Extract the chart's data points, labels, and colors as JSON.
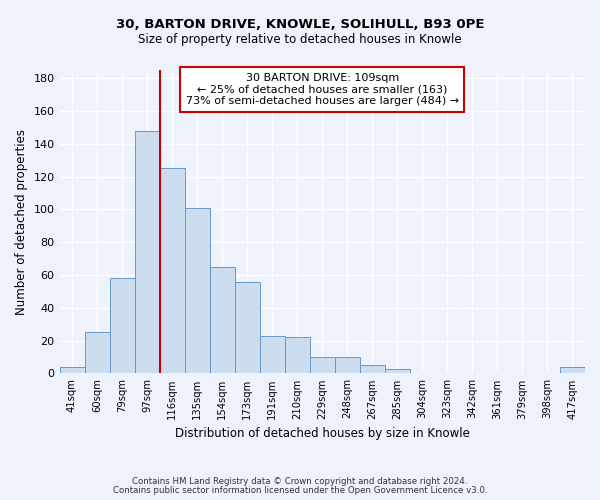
{
  "title": "30, BARTON DRIVE, KNOWLE, SOLIHULL, B93 0PE",
  "subtitle": "Size of property relative to detached houses in Knowle",
  "xlabel": "Distribution of detached houses by size in Knowle",
  "ylabel": "Number of detached properties",
  "bar_labels": [
    "41sqm",
    "60sqm",
    "79sqm",
    "97sqm",
    "116sqm",
    "135sqm",
    "154sqm",
    "173sqm",
    "191sqm",
    "210sqm",
    "229sqm",
    "248sqm",
    "267sqm",
    "285sqm",
    "304sqm",
    "323sqm",
    "342sqm",
    "361sqm",
    "379sqm",
    "398sqm",
    "417sqm"
  ],
  "bar_values": [
    4,
    25,
    58,
    148,
    125,
    101,
    65,
    56,
    23,
    22,
    10,
    10,
    5,
    3,
    0,
    0,
    0,
    0,
    0,
    0,
    4
  ],
  "bar_color": "#ccddf0",
  "bar_edge_color": "#6699cc",
  "vline_x": 4.0,
  "vline_color": "#cc0000",
  "annotation_line1": "30 BARTON DRIVE: 109sqm",
  "annotation_line2": "← 25% of detached houses are smaller (163)",
  "annotation_line3": "73% of semi-detached houses are larger (484) →",
  "annotation_box_color": "#ffffff",
  "annotation_box_edge": "#cc0000",
  "ylim": [
    0,
    185
  ],
  "yticks": [
    0,
    20,
    40,
    60,
    80,
    100,
    120,
    140,
    160,
    180
  ],
  "footer1": "Contains HM Land Registry data © Crown copyright and database right 2024.",
  "footer2": "Contains public sector information licensed under the Open Government Licence v3.0.",
  "background_color": "#eef2fa"
}
